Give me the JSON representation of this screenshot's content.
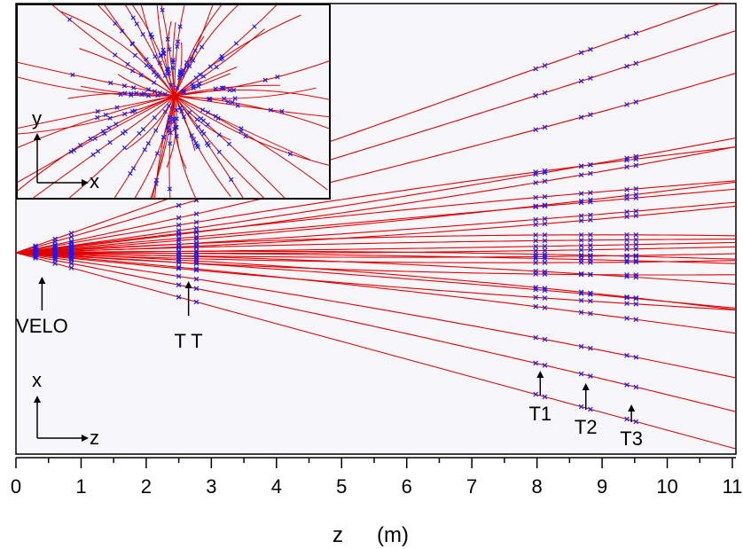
{
  "chart_data": {
    "type": "scatter",
    "description_free": true,
    "xlabel": "z",
    "xunit": "(m)",
    "xlim": [
      0,
      11
    ],
    "x_ticks": [
      "0",
      "1",
      "2",
      "3",
      "4",
      "5",
      "6",
      "7",
      "8",
      "9",
      "10",
      "11"
    ],
    "grid": false,
    "colors": {
      "track": "#e00000",
      "hit": "#1a1aff",
      "frame": "#000000",
      "background": "#f7f7fb"
    },
    "stations": [
      {
        "label": "VELO",
        "z": 0.4
      },
      {
        "label": "T T",
        "z": 2.65
      },
      {
        "label": "T1",
        "z": 8.05
      },
      {
        "label": "T2",
        "z": 8.75
      },
      {
        "label": "T3",
        "z": 9.45
      }
    ],
    "station_hit_z": [
      {
        "z": 0.3
      },
      {
        "z": 0.6
      },
      {
        "z": 0.85
      },
      {
        "z": 2.5
      },
      {
        "z": 2.77
      },
      {
        "z": 7.98
      },
      {
        "z": 8.12
      },
      {
        "z": 8.68
      },
      {
        "z": 8.82
      },
      {
        "z": 9.38
      },
      {
        "z": 9.52
      }
    ],
    "tracks_bending": [
      {
        "slope": 0.52,
        "k": 0
      },
      {
        "slope": 0.42,
        "k": 0.003
      },
      {
        "slope": 0.3,
        "k": 0.006
      },
      {
        "slope": 0.26,
        "k": -0.004
      },
      {
        "slope": 0.19,
        "k": 0.004
      },
      {
        "slope": 0.18,
        "k": -0.003
      },
      {
        "slope": 0.15,
        "k": 0.006
      },
      {
        "slope": 0.13,
        "k": 0
      },
      {
        "slope": 0.1,
        "k": 0.004
      },
      {
        "slope": 0.09,
        "k": -0.005
      },
      {
        "slope": 0.07,
        "k": 0.003
      },
      {
        "slope": 0.05,
        "k": -0.002
      },
      {
        "slope": 0.04,
        "k": 0.005
      },
      {
        "slope": 0.02,
        "k": -0.003
      },
      {
        "slope": 0.01,
        "k": 0.001
      },
      {
        "slope": 0,
        "k": -0.002
      },
      {
        "slope": -0.01,
        "k": 0.002
      },
      {
        "slope": -0.02,
        "k": -0.004
      },
      {
        "slope": -0.035,
        "k": 0.003
      },
      {
        "slope": -0.05,
        "k": -0.006
      },
      {
        "slope": -0.06,
        "k": 0.004
      },
      {
        "slope": -0.08,
        "k": -0.003
      },
      {
        "slope": -0.1,
        "k": 0.005
      },
      {
        "slope": -0.12,
        "k": -0.004
      },
      {
        "slope": -0.15,
        "k": 0.003
      },
      {
        "slope": -0.2,
        "k": -0.005
      },
      {
        "slope": -0.28,
        "k": -0.004
      },
      {
        "slope": -0.4,
        "k": 0
      }
    ],
    "inset": {
      "xlabel": "x",
      "ylabel": "y",
      "rays": 60
    },
    "main_axis_labels": {
      "vertical": "x",
      "horizontal": "z"
    }
  }
}
